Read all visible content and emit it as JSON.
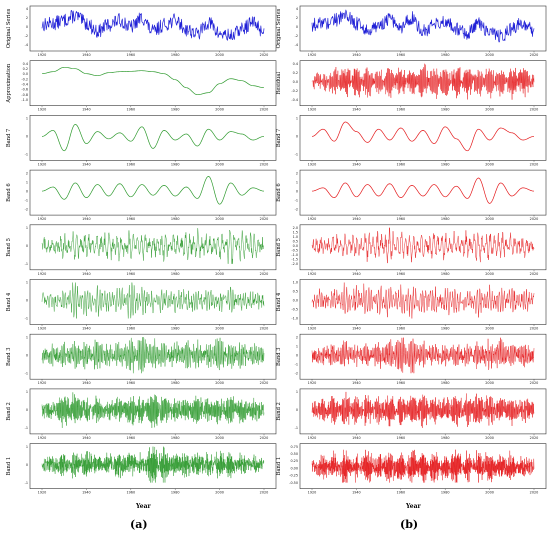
{
  "figure": {
    "panel_a_label": "(a)",
    "panel_b_label": "(b)",
    "x_axis_title": "Year",
    "x_tick_labels": [
      "1920",
      "1940",
      "1960",
      "1980",
      "2000",
      "2020"
    ],
    "colors": {
      "original": "#1f1fd6",
      "band_a": "#2e9a2e",
      "band_b": "#e41a1c"
    }
  },
  "chart_data": [
    {
      "panel": "(a)",
      "type": "line",
      "ylabel": "Original Series",
      "color": "#1f1fd6",
      "x_range": [
        1920,
        2020
      ],
      "ylim": [
        -4,
        4
      ],
      "yticks": [
        "4",
        "2",
        "0",
        "-2",
        "-4"
      ],
      "x": [
        1920,
        1925,
        1930,
        1935,
        1940,
        1945,
        1950,
        1955,
        1960,
        1965,
        1970,
        1975,
        1980,
        1985,
        1990,
        1995,
        2000,
        2005,
        2010,
        2015,
        2020
      ],
      "values": [
        0.5,
        0.8,
        1.5,
        2.5,
        0.8,
        -1.0,
        0.5,
        1.5,
        0.0,
        2.0,
        -1.0,
        0.5,
        1.5,
        -0.5,
        -1.5,
        1.0,
        -1.5,
        -2.0,
        -0.5,
        1.0,
        -1.0
      ]
    },
    {
      "panel": "(a)",
      "type": "line",
      "ylabel": "Approximation",
      "color": "#2e9a2e",
      "x_range": [
        1920,
        2020
      ],
      "ylim": [
        -1.2,
        0.6
      ],
      "yticks": [
        "0.4",
        "0.2",
        "0.0",
        "-0.2",
        "-0.4",
        "-0.6",
        "-0.8",
        "-1.0"
      ],
      "x": [
        1920,
        1925,
        1930,
        1935,
        1940,
        1945,
        1950,
        1955,
        1960,
        1965,
        1970,
        1975,
        1980,
        1985,
        1990,
        1995,
        2000,
        2005,
        2010,
        2015,
        2020
      ],
      "values": [
        0.1,
        0.2,
        0.42,
        0.35,
        0.1,
        0.0,
        0.15,
        0.2,
        0.22,
        0.25,
        0.2,
        0.1,
        -0.2,
        -0.6,
        -0.95,
        -0.85,
        -0.4,
        -0.15,
        -0.25,
        -0.5,
        -0.6
      ]
    },
    {
      "panel": "(a)",
      "type": "line",
      "ylabel": "Band 7",
      "color": "#2e9a2e",
      "x_range": [
        1920,
        2020
      ],
      "ylim": [
        -1.5,
        1.5
      ],
      "yticks": [
        "1",
        "0",
        "-1"
      ],
      "x": [
        1920,
        1925,
        1930,
        1935,
        1940,
        1945,
        1950,
        1955,
        1960,
        1965,
        1970,
        1975,
        1980,
        1985,
        1990,
        1995,
        2000,
        2005,
        2010,
        2015,
        2020
      ],
      "values": [
        0.0,
        0.5,
        -1.2,
        1.0,
        -0.6,
        0.4,
        -0.2,
        0.3,
        -0.4,
        0.8,
        -1.0,
        0.5,
        -0.3,
        0.2,
        -0.8,
        0.6,
        -0.3,
        0.4,
        0.2,
        -0.3,
        0.0
      ]
    },
    {
      "panel": "(a)",
      "type": "line",
      "ylabel": "Band 6",
      "color": "#2e9a2e",
      "x_range": [
        1920,
        2020
      ],
      "ylim": [
        -2.2,
        2.2
      ],
      "yticks": [
        "2",
        "1",
        "0",
        "-1",
        "-2"
      ],
      "x": [
        1920,
        1925,
        1930,
        1935,
        1940,
        1945,
        1950,
        1955,
        1960,
        1965,
        1970,
        1975,
        1980,
        1985,
        1990,
        1995,
        2000,
        2005,
        2010,
        2015,
        2020
      ],
      "values": [
        0.0,
        0.5,
        -1.0,
        1.0,
        -0.8,
        0.8,
        -0.6,
        0.9,
        -0.7,
        0.8,
        -0.5,
        0.7,
        -0.6,
        0.5,
        -0.9,
        1.8,
        -1.6,
        1.0,
        -0.5,
        0.4,
        0.0
      ]
    },
    {
      "panel": "(a)",
      "type": "line",
      "ylabel": "Band 5",
      "color": "#2e9a2e",
      "x_range": [
        1920,
        2020
      ],
      "ylim": [
        -1.6,
        1.6
      ],
      "yticks": [
        "1",
        "0",
        "-1"
      ],
      "x": [
        1920,
        1925,
        1930,
        1935,
        1940,
        1945,
        1950,
        1955,
        1960,
        1965,
        1970,
        1975,
        1980,
        1985,
        1990,
        1995,
        2000,
        2005,
        2010,
        2015,
        2020
      ],
      "values": [
        0.0,
        0.3,
        -0.5,
        0.8,
        -0.6,
        0.6,
        -0.7,
        0.9,
        -0.8,
        0.6,
        -0.5,
        0.7,
        -0.6,
        0.8,
        -0.7,
        0.6,
        -0.9,
        1.3,
        -1.0,
        0.6,
        0.0
      ]
    },
    {
      "panel": "(a)",
      "type": "line",
      "ylabel": "Band 4",
      "color": "#2e9a2e",
      "x_range": [
        1920,
        2020
      ],
      "ylim": [
        -1.2,
        1.2
      ],
      "yticks": [
        "1",
        "0",
        "-1"
      ],
      "x": [
        1920,
        1925,
        1930,
        1935,
        1940,
        1945,
        1950,
        1955,
        1960,
        1965,
        1970,
        1975,
        1980,
        1985,
        1990,
        1995,
        2000,
        2005,
        2010,
        2015,
        2020
      ],
      "values": [
        0.0,
        0.2,
        -0.3,
        1.0,
        -0.8,
        0.5,
        -0.6,
        0.7,
        -1.0,
        0.6,
        -0.4,
        0.5,
        -0.4,
        0.3,
        -0.5,
        0.4,
        -0.3,
        0.4,
        -0.3,
        0.2,
        0.0
      ]
    },
    {
      "panel": "(a)",
      "type": "line",
      "ylabel": "Band 3",
      "color": "#2e9a2e",
      "x_range": [
        1920,
        2020
      ],
      "ylim": [
        -1.2,
        1.2
      ],
      "yticks": [
        "1",
        "0",
        "-1"
      ],
      "x": [
        1920,
        1925,
        1930,
        1935,
        1940,
        1945,
        1950,
        1955,
        1960,
        1965,
        1970,
        1975,
        1980,
        1985,
        1990,
        1995,
        2000,
        2005,
        2010,
        2015,
        2020
      ],
      "values": [
        0.0,
        0.2,
        -0.3,
        0.4,
        -0.5,
        0.6,
        -0.4,
        0.5,
        -0.8,
        1.0,
        -0.6,
        0.5,
        -0.4,
        0.6,
        -0.5,
        0.4,
        -0.7,
        0.5,
        -0.4,
        0.3,
        0.0
      ]
    },
    {
      "panel": "(a)",
      "type": "line",
      "ylabel": "Band 2",
      "color": "#2e9a2e",
      "x_range": [
        1920,
        2020
      ],
      "ylim": [
        -1.2,
        1.2
      ],
      "yticks": [
        "1",
        "0",
        "-1"
      ],
      "x": [
        1920,
        1925,
        1930,
        1935,
        1940,
        1945,
        1950,
        1955,
        1960,
        1965,
        1970,
        1975,
        1980,
        1985,
        1990,
        1995,
        2000,
        2005,
        2010,
        2015,
        2020
      ],
      "values": [
        0.0,
        0.1,
        -0.8,
        0.7,
        -0.4,
        0.5,
        -0.3,
        0.4,
        -0.6,
        0.5,
        -1.0,
        0.6,
        -0.4,
        0.5,
        -0.6,
        0.4,
        -0.5,
        0.6,
        -0.4,
        0.3,
        0.0
      ]
    },
    {
      "panel": "(a)",
      "type": "line",
      "ylabel": "Band 1",
      "color": "#2e9a2e",
      "x_range": [
        1920,
        2020
      ],
      "ylim": [
        -1.2,
        1.2
      ],
      "yticks": [
        "1",
        "0",
        "-1"
      ],
      "x": [
        1920,
        1925,
        1930,
        1935,
        1940,
        1945,
        1950,
        1955,
        1960,
        1965,
        1970,
        1975,
        1980,
        1985,
        1990,
        1995,
        2000,
        2005,
        2010,
        2015,
        2020
      ],
      "values": [
        0.0,
        0.1,
        -0.3,
        0.4,
        -0.5,
        0.4,
        -0.3,
        0.5,
        -0.4,
        0.3,
        -1.0,
        0.9,
        -0.4,
        0.5,
        -0.4,
        0.3,
        -0.5,
        0.4,
        -0.3,
        0.2,
        0.0
      ]
    },
    {
      "panel": "(b)",
      "type": "line",
      "ylabel": "Original Series",
      "color": "#1f1fd6",
      "x_range": [
        1920,
        2020
      ],
      "ylim": [
        -4,
        4
      ],
      "yticks": [
        "4",
        "2",
        "0",
        "-2",
        "-4"
      ],
      "x": [
        1920,
        1925,
        1930,
        1935,
        1940,
        1945,
        1950,
        1955,
        1960,
        1965,
        1970,
        1975,
        1980,
        1985,
        1990,
        1995,
        2000,
        2005,
        2010,
        2015,
        2020
      ],
      "values": [
        0.5,
        0.8,
        1.5,
        2.5,
        0.8,
        -1.0,
        0.5,
        1.5,
        0.0,
        2.0,
        -1.0,
        0.5,
        1.5,
        -0.5,
        -1.5,
        1.0,
        -1.5,
        -2.0,
        -0.5,
        1.0,
        -1.0
      ]
    },
    {
      "panel": "(b)",
      "type": "line",
      "ylabel": "Residual",
      "color": "#e41a1c",
      "x_range": [
        1920,
        2020
      ],
      "ylim": [
        -0.5,
        0.5
      ],
      "yticks": [
        "0.4",
        "0.2",
        "0.0",
        "-0.2",
        "-0.4"
      ],
      "x": [
        1920,
        1925,
        1930,
        1935,
        1940,
        1945,
        1950,
        1955,
        1960,
        1965,
        1970,
        1975,
        1980,
        1985,
        1990,
        1995,
        2000,
        2005,
        2010,
        2015,
        2020
      ],
      "values": [
        0.0,
        0.1,
        -0.2,
        0.3,
        -0.3,
        0.3,
        -0.2,
        0.35,
        -0.3,
        0.2,
        -0.4,
        0.3,
        -0.3,
        0.35,
        -0.3,
        0.3,
        -0.35,
        0.3,
        -0.3,
        0.25,
        0.0
      ]
    },
    {
      "panel": "(b)",
      "type": "line",
      "ylabel": "Band 7",
      "color": "#e41a1c",
      "x_range": [
        1920,
        2020
      ],
      "ylim": [
        -1.5,
        1.5
      ],
      "yticks": [
        "1",
        "0",
        "-1"
      ],
      "x": [
        1920,
        1925,
        1930,
        1935,
        1940,
        1945,
        1950,
        1955,
        1960,
        1965,
        1970,
        1975,
        1980,
        1985,
        1990,
        1995,
        2000,
        2005,
        2010,
        2015,
        2020
      ],
      "values": [
        0.0,
        0.6,
        -0.4,
        1.2,
        0.4,
        -0.5,
        0.6,
        -0.3,
        0.7,
        -0.4,
        0.5,
        -0.6,
        0.8,
        -0.2,
        -1.2,
        0.6,
        -0.3,
        0.7,
        0.3,
        -0.3,
        0.0
      ]
    },
    {
      "panel": "(b)",
      "type": "line",
      "ylabel": "Band 6",
      "color": "#e41a1c",
      "x_range": [
        1920,
        2020
      ],
      "ylim": [
        -2.2,
        2.2
      ],
      "yticks": [
        "2",
        "1",
        "0",
        "-1",
        "-2"
      ],
      "x": [
        1920,
        1925,
        1930,
        1935,
        1940,
        1945,
        1950,
        1955,
        1960,
        1965,
        1970,
        1975,
        1980,
        1985,
        1990,
        1995,
        2000,
        2005,
        2010,
        2015,
        2020
      ],
      "values": [
        0.0,
        0.4,
        -0.8,
        1.0,
        -0.7,
        0.8,
        -0.6,
        0.9,
        -0.8,
        0.7,
        -0.6,
        0.8,
        -0.7,
        0.6,
        -0.9,
        1.6,
        -1.5,
        1.0,
        -0.6,
        0.4,
        0.0
      ]
    },
    {
      "panel": "(b)",
      "type": "line",
      "ylabel": "Band 5",
      "color": "#e41a1c",
      "x_range": [
        1920,
        2020
      ],
      "ylim": [
        -2.5,
        2.5
      ],
      "yticks": [
        "2.0",
        "1.5",
        "1.0",
        "0.5",
        "0.0",
        "-0.5",
        "-1.0",
        "-1.5",
        "-2.0"
      ],
      "x": [
        1920,
        1925,
        1930,
        1935,
        1940,
        1945,
        1950,
        1955,
        1960,
        1965,
        1970,
        1975,
        1980,
        1985,
        1990,
        1995,
        2000,
        2005,
        2010,
        2015,
        2020
      ],
      "values": [
        0.0,
        0.3,
        -0.8,
        1.2,
        -1.0,
        1.3,
        -1.2,
        1.8,
        -1.5,
        1.4,
        -1.0,
        1.5,
        -1.3,
        1.2,
        -1.0,
        1.6,
        -1.4,
        1.2,
        -0.8,
        0.6,
        0.0
      ]
    },
    {
      "panel": "(b)",
      "type": "line",
      "ylabel": "Band 4",
      "color": "#e41a1c",
      "x_range": [
        1920,
        2020
      ],
      "ylim": [
        -1.5,
        1.5
      ],
      "yticks": [
        "1.0",
        "0.5",
        "0.0",
        "-0.5",
        "-1.0"
      ],
      "x": [
        1920,
        1925,
        1930,
        1935,
        1940,
        1945,
        1950,
        1955,
        1960,
        1965,
        1970,
        1975,
        1980,
        1985,
        1990,
        1995,
        2000,
        2005,
        2010,
        2015,
        2020
      ],
      "values": [
        0.0,
        0.3,
        -0.6,
        0.9,
        -0.8,
        1.0,
        -0.7,
        0.8,
        -0.9,
        1.0,
        -0.6,
        0.7,
        -0.8,
        0.6,
        -0.7,
        0.8,
        -0.6,
        0.7,
        -0.5,
        0.4,
        0.0
      ]
    },
    {
      "panel": "(b)",
      "type": "line",
      "ylabel": "Band 3",
      "color": "#e41a1c",
      "x_range": [
        1920,
        2020
      ],
      "ylim": [
        -2.2,
        2.2
      ],
      "yticks": [
        "2",
        "1",
        "0",
        "-1",
        "-2"
      ],
      "x": [
        1920,
        1925,
        1930,
        1935,
        1940,
        1945,
        1950,
        1955,
        1960,
        1965,
        1970,
        1975,
        1980,
        1985,
        1990,
        1995,
        2000,
        2005,
        2010,
        2015,
        2020
      ],
      "values": [
        0.0,
        0.4,
        -0.6,
        0.8,
        -0.7,
        0.6,
        -0.8,
        1.0,
        -1.9,
        1.6,
        -0.8,
        0.7,
        -0.6,
        0.8,
        -0.7,
        0.9,
        -1.0,
        1.1,
        -0.8,
        0.5,
        0.0
      ]
    },
    {
      "panel": "(b)",
      "type": "line",
      "ylabel": "Band 2",
      "color": "#e41a1c",
      "x_range": [
        1920,
        2020
      ],
      "ylim": [
        -1.2,
        1.2
      ],
      "yticks": [
        "1",
        "0",
        "-1"
      ],
      "x": [
        1920,
        1925,
        1930,
        1935,
        1940,
        1945,
        1950,
        1955,
        1960,
        1965,
        1970,
        1975,
        1980,
        1985,
        1990,
        1995,
        2000,
        2005,
        2010,
        2015,
        2020
      ],
      "values": [
        0.0,
        0.3,
        -0.6,
        0.7,
        -0.5,
        0.6,
        -0.6,
        0.7,
        -0.6,
        0.8,
        -0.7,
        0.6,
        -0.5,
        0.7,
        -0.6,
        0.8,
        -0.7,
        0.6,
        -0.5,
        0.4,
        0.0
      ]
    },
    {
      "panel": "(b)",
      "type": "line",
      "ylabel": "Band 1",
      "color": "#e41a1c",
      "x_range": [
        1920,
        2020
      ],
      "ylim": [
        -0.6,
        0.8
      ],
      "yticks": [
        "0.75",
        "0.50",
        "0.25",
        "0.00",
        "-0.25",
        "-0.50"
      ],
      "x": [
        1920,
        1925,
        1930,
        1935,
        1940,
        1945,
        1950,
        1955,
        1960,
        1965,
        1970,
        1975,
        1980,
        1985,
        1990,
        1995,
        2000,
        2005,
        2010,
        2015,
        2020
      ],
      "values": [
        0.0,
        0.2,
        -0.3,
        0.4,
        -0.3,
        0.5,
        -0.3,
        0.45,
        -0.4,
        0.5,
        -0.45,
        0.4,
        -0.3,
        0.5,
        -0.35,
        0.4,
        -0.4,
        0.3,
        -0.3,
        0.25,
        0.0
      ]
    }
  ]
}
